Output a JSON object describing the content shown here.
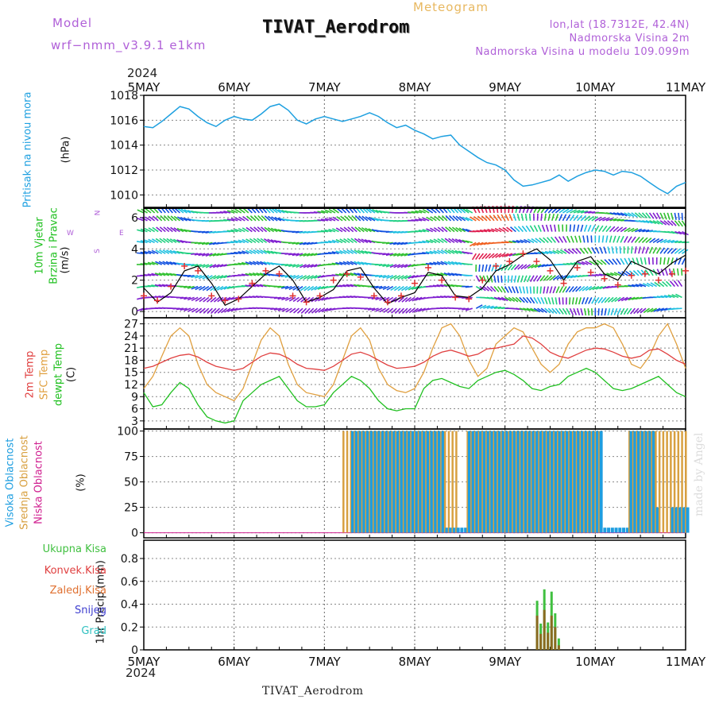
{
  "header": {
    "model_label": "Model",
    "model_name": "wrf−nmm_v3.9.1  e1km",
    "meteogram_label": "Meteogram",
    "title": "TIVAT_Aerodrom",
    "location": "lon,lat (18.7312E, 42.4N)",
    "height_station": "Nadmorska Visina 2m",
    "height_model": "Nadmorska Visina u modelu 109.099m",
    "bottom_title": "TIVAT_Aerodrom",
    "watermark": "made by Angel"
  },
  "colors": {
    "pressure": "#1ea0e0",
    "wind_label": "#20c020",
    "wind_speed": "#000000",
    "wind_gust": "#e03030",
    "temp2m": "#e04040",
    "sfc_temp": "#e0a040",
    "dewpt": "#20c020",
    "cloud_high": "#1e9ee0",
    "cloud_mid": "#d8a040",
    "cloud_low": "#d02090",
    "precip_total": "#40c040",
    "precip_conv": "#e04040",
    "precip_frozen": "#e07030",
    "precip_snow": "#4040d0",
    "precip_hail": "#30c0c0"
  },
  "time_axis": {
    "year": "2024",
    "labels": [
      "5MAY",
      "6MAY",
      "7MAY",
      "8MAY",
      "9MAY",
      "10MAY",
      "11MAY"
    ]
  },
  "wind_compass": [
    "N",
    "S",
    "W",
    "E"
  ],
  "chart_data": [
    {
      "type": "line",
      "panel": "pressure",
      "ylabel": "Pritisak na nivou mora",
      "unit": "(hPa)",
      "ylim": [
        1009,
        1018
      ],
      "yticks": [
        1010,
        1012,
        1014,
        1016,
        1018
      ],
      "x_days": [
        0,
        0.1,
        0.2,
        0.3,
        0.4,
        0.5,
        0.6,
        0.7,
        0.8,
        0.9,
        1.0,
        1.1,
        1.2,
        1.3,
        1.4,
        1.5,
        1.6,
        1.7,
        1.8,
        1.9,
        2.0,
        2.1,
        2.2,
        2.3,
        2.4,
        2.5,
        2.6,
        2.7,
        2.8,
        2.9,
        3.0,
        3.1,
        3.2,
        3.3,
        3.4,
        3.5,
        3.6,
        3.7,
        3.8,
        3.9,
        4.0,
        4.1,
        4.2,
        4.3,
        4.4,
        4.5,
        4.6,
        4.7,
        4.8,
        4.9,
        5.0,
        5.1,
        5.2,
        5.3,
        5.4,
        5.5,
        5.6,
        5.7,
        5.8,
        5.9,
        6.0
      ],
      "series": [
        {
          "values": [
            1015.5,
            1015.4,
            1015.9,
            1016.5,
            1017.1,
            1016.9,
            1016.3,
            1015.8,
            1015.5,
            1016.0,
            1016.3,
            1016.1,
            1016.0,
            1016.5,
            1017.1,
            1017.3,
            1016.8,
            1016.0,
            1015.7,
            1016.1,
            1016.3,
            1016.1,
            1015.9,
            1016.1,
            1016.3,
            1016.6,
            1016.3,
            1015.8,
            1015.4,
            1015.6,
            1015.2,
            1014.9,
            1014.5,
            1014.7,
            1014.8,
            1014.0,
            1013.5,
            1013.0,
            1012.6,
            1012.4,
            1012.0,
            1011.2,
            1010.7,
            1010.8,
            1011.0,
            1011.2,
            1011.6,
            1011.1,
            1011.5,
            1011.8,
            1012.0,
            1011.9,
            1011.6,
            1011.9,
            1011.8,
            1011.5,
            1011.0,
            1010.5,
            1010.1,
            1010.7,
            1011.0
          ]
        }
      ]
    },
    {
      "type": "line",
      "panel": "wind",
      "ylabel": "10m Vjetar Brzina i Pravac",
      "unit": "(m/s)",
      "ylim": [
        -0.4,
        6.6
      ],
      "yticks": [
        0,
        2,
        4,
        6
      ],
      "x_days": [
        0,
        0.15,
        0.3,
        0.45,
        0.6,
        0.75,
        0.9,
        1.05,
        1.2,
        1.35,
        1.5,
        1.65,
        1.8,
        1.95,
        2.1,
        2.25,
        2.4,
        2.55,
        2.7,
        2.85,
        3.0,
        3.15,
        3.3,
        3.45,
        3.6,
        3.75,
        3.9,
        4.05,
        4.2,
        4.35,
        4.5,
        4.65,
        4.8,
        4.95,
        5.1,
        5.25,
        5.4,
        5.55,
        5.7,
        5.85,
        6.0
      ],
      "series": [
        {
          "name": "speed",
          "values": [
            1.5,
            0.6,
            1.2,
            2.6,
            2.9,
            1.8,
            0.4,
            0.8,
            1.6,
            2.4,
            2.9,
            2.0,
            0.6,
            0.9,
            1.4,
            2.6,
            2.8,
            1.5,
            0.5,
            0.9,
            1.2,
            2.5,
            2.3,
            1.0,
            0.9,
            1.5,
            2.6,
            3.0,
            3.6,
            4.0,
            3.3,
            2.0,
            3.2,
            3.5,
            2.4,
            2.0,
            3.2,
            2.8,
            2.4,
            3.1,
            3.6
          ]
        },
        {
          "name": "gust",
          "values": [
            1.0,
            0.7,
            1.6,
            2.9,
            2.6,
            1.0,
            0.7,
            0.8,
            1.8,
            2.6,
            2.4,
            1.0,
            0.6,
            1.0,
            2.0,
            2.4,
            2.2,
            1.0,
            0.6,
            1.0,
            1.8,
            2.8,
            2.0,
            0.9,
            0.8,
            2.0,
            2.9,
            3.2,
            3.7,
            3.2,
            2.6,
            1.8,
            2.8,
            2.5,
            2.1,
            1.7,
            2.3,
            2.4,
            2.0,
            2.4,
            2.6
          ]
        }
      ]
    },
    {
      "type": "line",
      "panel": "temperature",
      "ylabel": [
        "2m Temp",
        "SFC Temp",
        "dewpt Temp"
      ],
      "unit": "(C)",
      "ylim": [
        1,
        28.5
      ],
      "yticks": [
        3,
        6,
        9,
        12,
        15,
        18,
        21,
        24,
        27
      ],
      "x_days": [
        0,
        0.1,
        0.2,
        0.3,
        0.4,
        0.5,
        0.6,
        0.7,
        0.8,
        0.9,
        1.0,
        1.1,
        1.2,
        1.3,
        1.4,
        1.5,
        1.6,
        1.7,
        1.8,
        1.9,
        2.0,
        2.1,
        2.2,
        2.3,
        2.4,
        2.5,
        2.6,
        2.7,
        2.8,
        2.9,
        3.0,
        3.1,
        3.2,
        3.3,
        3.4,
        3.5,
        3.6,
        3.7,
        3.8,
        3.9,
        4.0,
        4.1,
        4.2,
        4.3,
        4.4,
        4.5,
        4.6,
        4.7,
        4.8,
        4.9,
        5.0,
        5.1,
        5.2,
        5.3,
        5.4,
        5.5,
        5.6,
        5.7,
        5.8,
        5.9,
        6.0
      ],
      "series": [
        {
          "name": "2m Temp",
          "values": [
            16,
            16.5,
            17.5,
            18.5,
            19.2,
            19.5,
            18.8,
            17.5,
            16.5,
            16,
            15.5,
            16,
            17.5,
            19,
            19.8,
            19.5,
            18.5,
            17,
            16,
            15.8,
            15.5,
            16.5,
            18,
            19.5,
            20,
            19.2,
            18,
            16.8,
            16,
            16.2,
            16.5,
            17.5,
            19,
            20,
            20.5,
            19.8,
            19,
            19.5,
            20.8,
            21,
            21.5,
            22,
            24,
            23.5,
            22,
            20,
            19,
            18.5,
            19.5,
            20.5,
            21,
            20.8,
            20,
            19,
            18.5,
            19,
            20.5,
            20.8,
            19.5,
            18,
            17
          ]
        },
        {
          "name": "SFC Temp",
          "values": [
            11,
            14,
            19,
            24,
            26,
            24,
            17,
            12,
            10,
            9,
            8,
            11,
            17,
            23,
            26,
            24,
            17,
            12,
            10,
            9.5,
            9,
            12,
            18,
            24,
            26,
            23,
            16,
            12,
            10.5,
            10,
            11,
            15,
            21,
            26,
            27,
            24,
            18,
            14,
            16,
            22,
            24,
            26,
            25,
            21,
            17,
            15,
            17,
            22,
            25,
            26,
            26,
            27,
            26,
            22,
            17,
            16,
            19,
            24,
            27,
            22,
            16
          ]
        },
        {
          "name": "dewpt Temp",
          "values": [
            10,
            6.5,
            7,
            10,
            12.5,
            11,
            7,
            4,
            3,
            2.5,
            3,
            8,
            10,
            12,
            13,
            14,
            11,
            8,
            6.5,
            6.5,
            7,
            10,
            12,
            14,
            13,
            11,
            8,
            6,
            5.5,
            6,
            6,
            11,
            13,
            13.5,
            12.5,
            11.5,
            11,
            13,
            14,
            15,
            15.5,
            14.5,
            13,
            11,
            10.5,
            11.5,
            12,
            14,
            15,
            16,
            15,
            13,
            11,
            10.5,
            11,
            12,
            13,
            14,
            12,
            10,
            9
          ]
        }
      ]
    },
    {
      "type": "bar",
      "panel": "clouds",
      "ylabel": [
        "Visoka Oblacnost",
        "Srednja Oblacnost",
        "Niska Oblacnost"
      ],
      "unit": "(%)",
      "ylim": [
        -5,
        102
      ],
      "yticks": [
        0,
        25,
        50,
        75,
        100
      ],
      "series": [
        {
          "name": "Visoka Oblacnost",
          "start_day": 2.25,
          "end_day": 6.0,
          "typical": 100
        },
        {
          "name": "Srednja Oblacnost",
          "start_day": 2.2,
          "end_day": 6.0,
          "typical": 100
        },
        {
          "name": "Niska Oblacnost",
          "start_day": 0,
          "end_day": 6.0,
          "typical": 0
        }
      ]
    },
    {
      "type": "bar",
      "panel": "precipitation",
      "ylabel": "1hr Precip",
      "unit": "(mm)",
      "ylim": [
        0,
        0.96
      ],
      "yticks": [
        0,
        0.2,
        0.4,
        0.6,
        0.8
      ],
      "legend": [
        "Ukupna Kisa",
        "Konvek.Kisa",
        "Zaledj.Kisa",
        "Snijeg",
        "Grad"
      ],
      "x_days": [
        4.36,
        4.4,
        4.44,
        4.48,
        4.52,
        4.56,
        4.6
      ],
      "series": [
        {
          "name": "Ukupna Kisa",
          "values": [
            0.43,
            0.23,
            0.53,
            0.24,
            0.51,
            0.32,
            0.1
          ]
        },
        {
          "name": "Konvek.Kisa",
          "values": [
            0.3,
            0.14,
            0.35,
            0.15,
            0.3,
            0.2,
            0.04
          ]
        }
      ]
    }
  ]
}
